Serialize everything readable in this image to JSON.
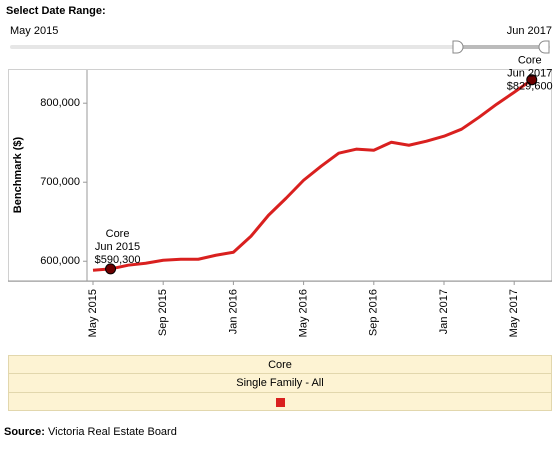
{
  "slider": {
    "title": "Select Date Range:",
    "start_label": "May 2015",
    "end_label": "Jun 2017"
  },
  "chart_data": {
    "type": "line",
    "y_label": "Benchmark ($)",
    "categories": [
      "May 2015",
      null,
      null,
      null,
      "Sep 2015",
      null,
      null,
      null,
      "Jan 2016",
      null,
      null,
      null,
      "May 2016",
      null,
      null,
      null,
      "Sep 2016",
      null,
      null,
      null,
      "Jan 2017",
      null,
      null,
      null,
      "May 2017",
      null
    ],
    "series": [
      {
        "name": "Core",
        "color": "#d9201f",
        "values": [
          588600,
          590300,
          595000,
          597500,
          601300,
          602500,
          602500,
          607600,
          611400,
          631600,
          658200,
          679700,
          702500,
          720300,
          736700,
          741800,
          740500,
          750600,
          746800,
          751900,
          758200,
          767100,
          782300,
          798700,
          813900,
          829600
        ]
      }
    ],
    "ylim": [
      575000,
      842000
    ],
    "yticks": [
      {
        "value": 600000,
        "label": "600,000"
      },
      {
        "value": 700000,
        "label": "700,000"
      },
      {
        "value": 800000,
        "label": "800,000"
      }
    ],
    "grid": false,
    "annotations": [
      {
        "series": "Core",
        "date": "Jun 2015",
        "value_label": "$590,300"
      },
      {
        "series": "Core",
        "date": "Jun 2017",
        "value_label": "$829,600"
      }
    ]
  },
  "legend": {
    "header": "Core",
    "subheader": "Single Family - All"
  },
  "source": {
    "label": "Source:",
    "text": " Victoria Real Estate Board"
  }
}
